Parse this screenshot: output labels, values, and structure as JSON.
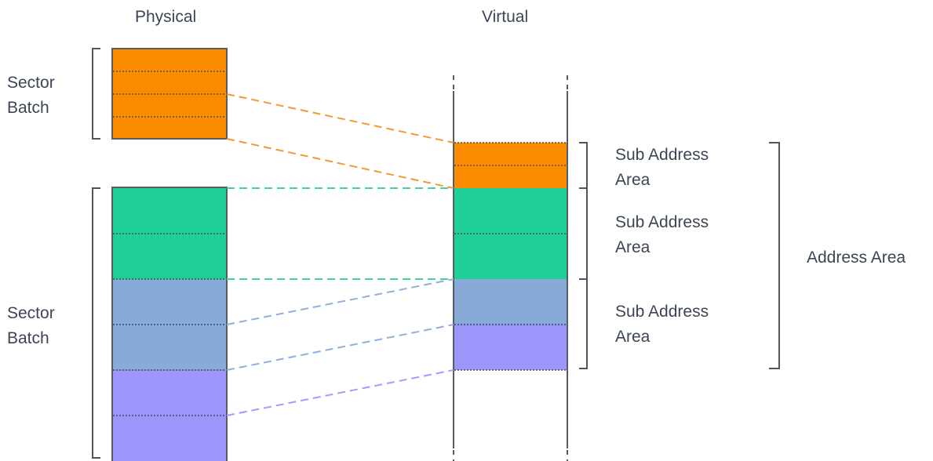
{
  "columns": {
    "physical": "Physical",
    "virtual": "Virtual"
  },
  "left_labels": {
    "top": [
      "Sector",
      "Batch"
    ],
    "bottom": [
      "Sector",
      "Batch"
    ]
  },
  "right_labels": {
    "sub_area_1": [
      "Sub Address",
      "Area"
    ],
    "sub_area_2": [
      "Sub Address",
      "Area"
    ],
    "sub_area_3": [
      "Sub Address",
      "Area"
    ],
    "address_area": "Address Area"
  },
  "colors": {
    "orange": "#fb8c00",
    "green": "#20cf98",
    "blue": "#87aad8",
    "purple": "#9d95fa",
    "text": "#3b4556",
    "bracket": "#4d5561",
    "border": "#555c66"
  }
}
